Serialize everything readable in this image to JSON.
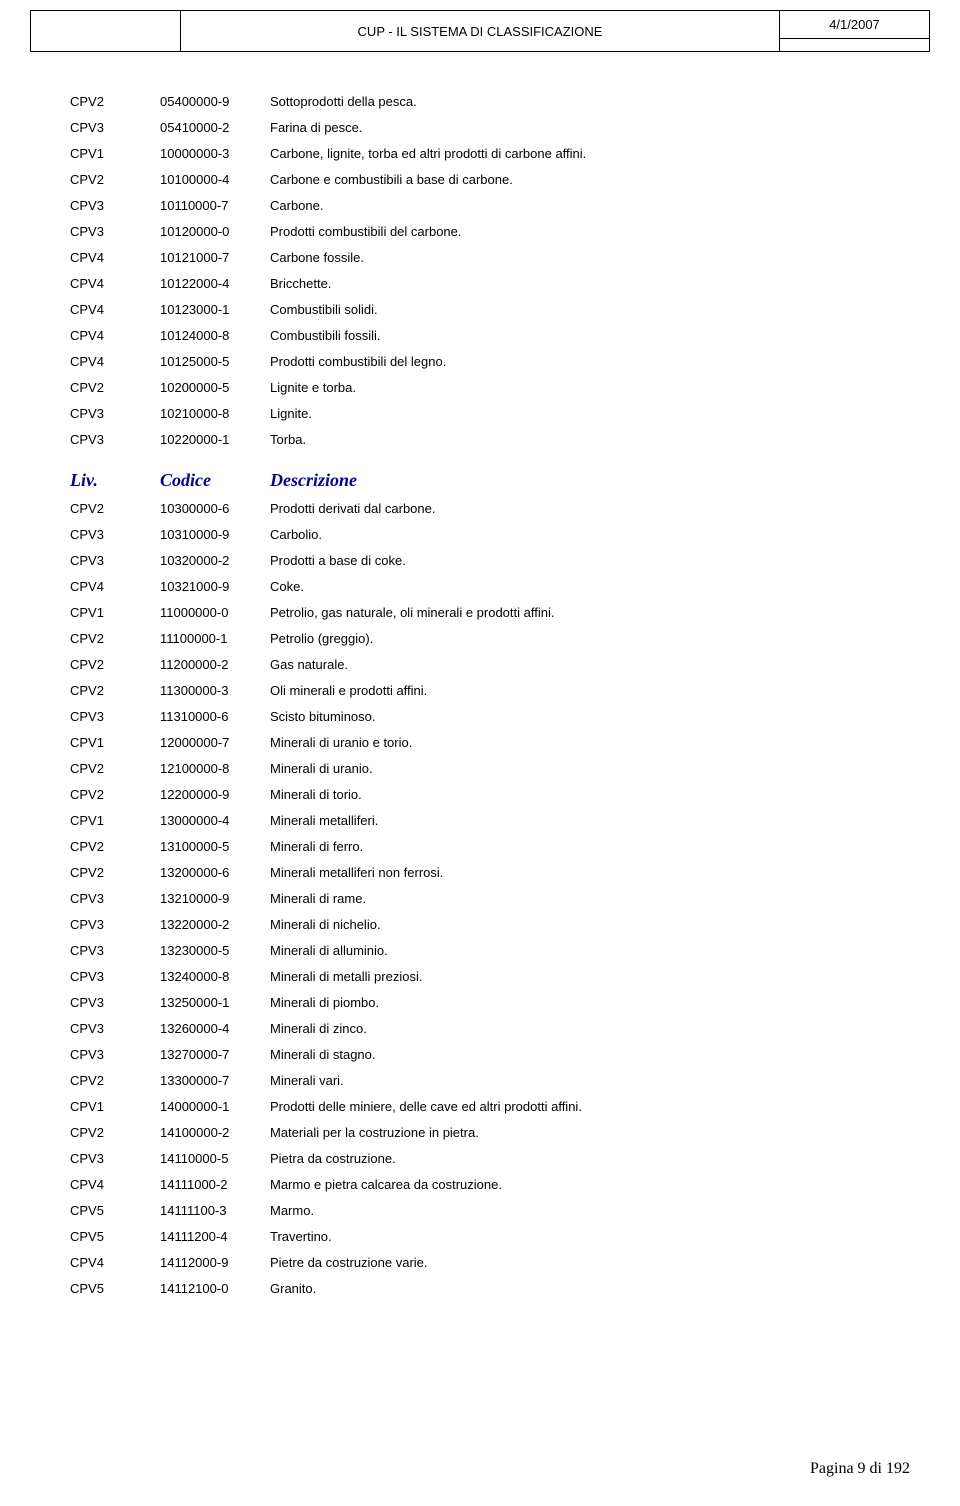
{
  "header": {
    "title": "CUP - IL SISTEMA DI CLASSIFICAZIONE",
    "date": "4/1/2007"
  },
  "section1": [
    {
      "liv": "CPV2",
      "code": "05400000-9",
      "desc": "Sottoprodotti della pesca."
    },
    {
      "liv": "CPV3",
      "code": "05410000-2",
      "desc": "Farina di pesce."
    },
    {
      "liv": "CPV1",
      "code": "10000000-3",
      "desc": "Carbone, lignite, torba ed altri prodotti di carbone affini."
    },
    {
      "liv": "CPV2",
      "code": "10100000-4",
      "desc": "Carbone e combustibili a base di carbone."
    },
    {
      "liv": "CPV3",
      "code": "10110000-7",
      "desc": "Carbone."
    },
    {
      "liv": "CPV3",
      "code": "10120000-0",
      "desc": "Prodotti combustibili del carbone."
    },
    {
      "liv": "CPV4",
      "code": "10121000-7",
      "desc": "Carbone fossile."
    },
    {
      "liv": "CPV4",
      "code": "10122000-4",
      "desc": "Bricchette."
    },
    {
      "liv": "CPV4",
      "code": "10123000-1",
      "desc": "Combustibili solidi."
    },
    {
      "liv": "CPV4",
      "code": "10124000-8",
      "desc": "Combustibili fossili."
    },
    {
      "liv": "CPV4",
      "code": "10125000-5",
      "desc": "Prodotti combustibili del legno."
    },
    {
      "liv": "CPV2",
      "code": "10200000-5",
      "desc": "Lignite e torba."
    },
    {
      "liv": "CPV3",
      "code": "10210000-8",
      "desc": "Lignite."
    },
    {
      "liv": "CPV3",
      "code": "10220000-1",
      "desc": "Torba."
    }
  ],
  "sectionHeader": {
    "liv": "Liv.",
    "code": "Codice",
    "desc": "Descrizione"
  },
  "section2": [
    {
      "liv": "CPV2",
      "code": "10300000-6",
      "desc": "Prodotti derivati dal carbone."
    },
    {
      "liv": "CPV3",
      "code": "10310000-9",
      "desc": "Carbolio."
    },
    {
      "liv": "CPV3",
      "code": "10320000-2",
      "desc": "Prodotti a base di coke."
    },
    {
      "liv": "CPV4",
      "code": "10321000-9",
      "desc": "Coke."
    },
    {
      "liv": "CPV1",
      "code": "11000000-0",
      "desc": "Petrolio, gas naturale, oli minerali e prodotti affini."
    },
    {
      "liv": "CPV2",
      "code": "11100000-1",
      "desc": "Petrolio (greggio)."
    },
    {
      "liv": "CPV2",
      "code": "11200000-2",
      "desc": "Gas naturale."
    },
    {
      "liv": "CPV2",
      "code": "11300000-3",
      "desc": "Oli minerali e prodotti affini."
    },
    {
      "liv": "CPV3",
      "code": "11310000-6",
      "desc": "Scisto bituminoso."
    },
    {
      "liv": "CPV1",
      "code": "12000000-7",
      "desc": "Minerali di uranio e torio."
    },
    {
      "liv": "CPV2",
      "code": "12100000-8",
      "desc": "Minerali di uranio."
    },
    {
      "liv": "CPV2",
      "code": "12200000-9",
      "desc": "Minerali di torio."
    },
    {
      "liv": "CPV1",
      "code": "13000000-4",
      "desc": "Minerali metalliferi."
    },
    {
      "liv": "CPV2",
      "code": "13100000-5",
      "desc": "Minerali di ferro."
    },
    {
      "liv": "CPV2",
      "code": "13200000-6",
      "desc": "Minerali metalliferi non ferrosi."
    },
    {
      "liv": "CPV3",
      "code": "13210000-9",
      "desc": "Minerali di rame."
    },
    {
      "liv": "CPV3",
      "code": "13220000-2",
      "desc": "Minerali di nichelio."
    },
    {
      "liv": "CPV3",
      "code": "13230000-5",
      "desc": "Minerali di alluminio."
    },
    {
      "liv": "CPV3",
      "code": "13240000-8",
      "desc": "Minerali di metalli preziosi."
    },
    {
      "liv": "CPV3",
      "code": "13250000-1",
      "desc": "Minerali di piombo."
    },
    {
      "liv": "CPV3",
      "code": "13260000-4",
      "desc": "Minerali di zinco."
    },
    {
      "liv": "CPV3",
      "code": "13270000-7",
      "desc": "Minerali di stagno."
    },
    {
      "liv": "CPV2",
      "code": "13300000-7",
      "desc": "Minerali vari."
    },
    {
      "liv": "CPV1",
      "code": "14000000-1",
      "desc": "Prodotti delle miniere, delle cave ed altri prodotti affini."
    },
    {
      "liv": "CPV2",
      "code": "14100000-2",
      "desc": "Materiali per la costruzione in pietra."
    },
    {
      "liv": "CPV3",
      "code": "14110000-5",
      "desc": "Pietra da costruzione."
    },
    {
      "liv": "CPV4",
      "code": "14111000-2",
      "desc": "Marmo e pietra calcarea da costruzione."
    },
    {
      "liv": "CPV5",
      "code": "14111100-3",
      "desc": "Marmo."
    },
    {
      "liv": "CPV5",
      "code": "14111200-4",
      "desc": "Travertino."
    },
    {
      "liv": "CPV4",
      "code": "14112000-9",
      "desc": "Pietre da costruzione varie."
    },
    {
      "liv": "CPV5",
      "code": "14112100-0",
      "desc": "Granito."
    }
  ],
  "footer": {
    "text": "Pagina 9 di 192"
  }
}
